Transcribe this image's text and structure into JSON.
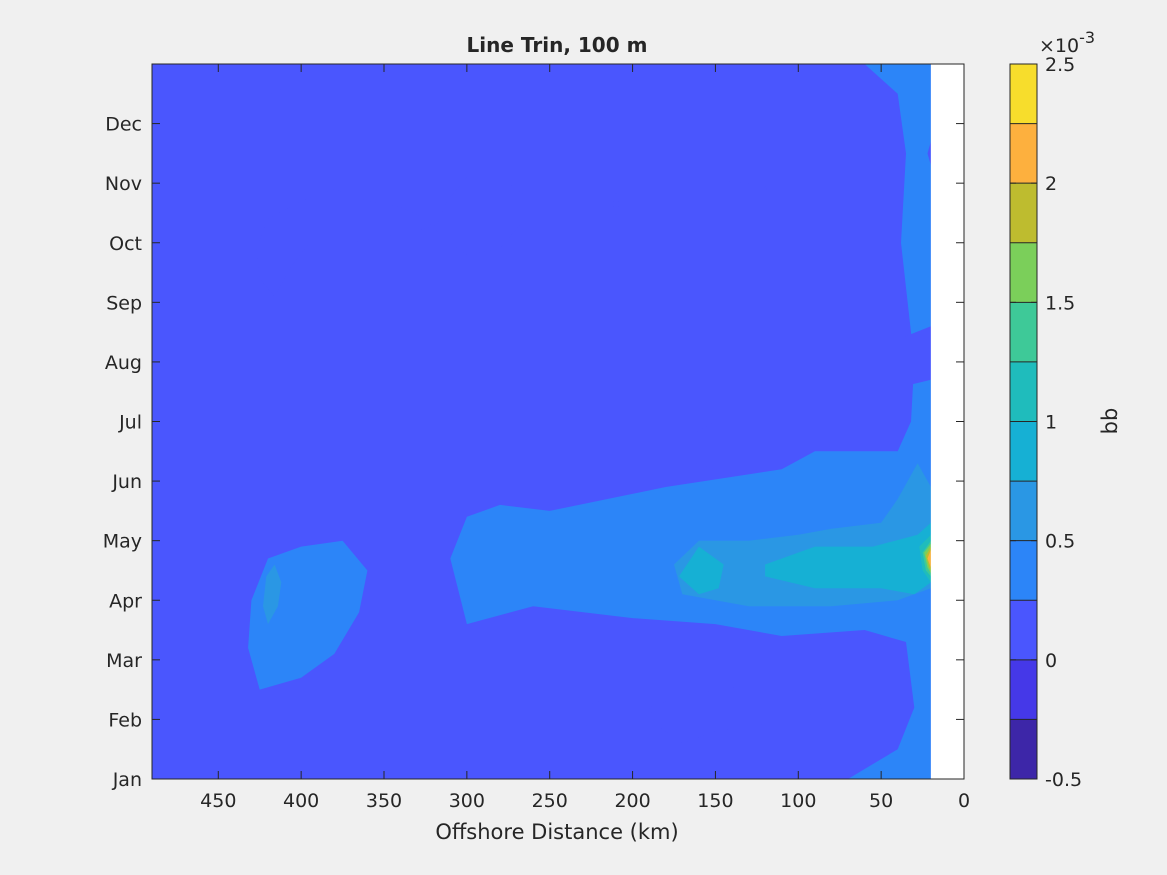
{
  "chart_data": {
    "type": "contourf",
    "title": "Line Trin, 100 m",
    "xlabel": "Offshore Distance (km)",
    "ylabel": "",
    "x_reversed": true,
    "xlim": [
      0,
      490
    ],
    "ylim": [
      0,
      12
    ],
    "x_ticks": [
      450,
      400,
      350,
      300,
      250,
      200,
      150,
      100,
      50,
      0
    ],
    "y_ticks": [
      "Jan",
      "Feb",
      "Mar",
      "Apr",
      "May",
      "Jun",
      "Jul",
      "Aug",
      "Sep",
      "Oct",
      "Nov",
      "Dec"
    ],
    "no_data_region_x": [
      0,
      20
    ],
    "colorbar": {
      "label": "bb",
      "multiplier": "×10",
      "exponent": "-3",
      "ticks": [
        "-0.5",
        "0",
        "0.5",
        "1",
        "1.5",
        "2",
        "2.5"
      ],
      "levels": [
        -0.5,
        -0.25,
        0,
        0.25,
        0.5,
        0.75,
        1.0,
        1.25,
        1.5,
        1.75,
        2.0,
        2.25,
        2.5
      ],
      "colors": [
        "#3d26a8",
        "#4538e8",
        "#4a56fe",
        "#2c85f8",
        "#2a97e4",
        "#16b0d4",
        "#1fbcbc",
        "#3ec998",
        "#7bcf5a",
        "#bebc2f",
        "#fdb03e",
        "#f7dd2c"
      ]
    },
    "background_level": 0.1,
    "regions": [
      {
        "level": 0.4,
        "points": [
          [
            70,
            0
          ],
          [
            20,
            0
          ],
          [
            20,
            12
          ],
          [
            60,
            12
          ],
          [
            40,
            11.5
          ],
          [
            35,
            10.5
          ],
          [
            38,
            9
          ],
          [
            30,
            7
          ],
          [
            32,
            6
          ],
          [
            40,
            5.5
          ],
          [
            90,
            5.5
          ],
          [
            110,
            5.2
          ],
          [
            180,
            4.9
          ],
          [
            250,
            4.5
          ],
          [
            280,
            4.6
          ],
          [
            300,
            4.4
          ],
          [
            310,
            3.7
          ],
          [
            300,
            2.6
          ],
          [
            260,
            2.9
          ],
          [
            200,
            2.7
          ],
          [
            150,
            2.6
          ],
          [
            110,
            2.4
          ],
          [
            60,
            2.5
          ],
          [
            35,
            2.3
          ],
          [
            30,
            1.2
          ],
          [
            40,
            0.5
          ]
        ]
      },
      {
        "level": 0.4,
        "points": [
          [
            425,
            1.5
          ],
          [
            400,
            1.7
          ],
          [
            380,
            2.1
          ],
          [
            365,
            2.8
          ],
          [
            360,
            3.5
          ],
          [
            375,
            4.0
          ],
          [
            400,
            3.9
          ],
          [
            420,
            3.7
          ],
          [
            430,
            3.0
          ],
          [
            432,
            2.2
          ]
        ]
      },
      {
        "level": 0.65,
        "points": [
          [
            20,
            4.9
          ],
          [
            28,
            5.3
          ],
          [
            40,
            4.7
          ],
          [
            50,
            4.3
          ],
          [
            80,
            4.2
          ],
          [
            100,
            4.1
          ],
          [
            130,
            4.0
          ],
          [
            160,
            4.0
          ],
          [
            175,
            3.6
          ],
          [
            170,
            3.1
          ],
          [
            130,
            2.9
          ],
          [
            80,
            2.9
          ],
          [
            40,
            3.0
          ],
          [
            20,
            3.2
          ]
        ]
      },
      {
        "level": 0.65,
        "points": [
          [
            420,
            2.6
          ],
          [
            414,
            2.9
          ],
          [
            412,
            3.3
          ],
          [
            416,
            3.6
          ],
          [
            421,
            3.4
          ],
          [
            423,
            2.9
          ]
        ]
      },
      {
        "level": 0.9,
        "points": [
          [
            20,
            4.3
          ],
          [
            28,
            4.1
          ],
          [
            55,
            3.9
          ],
          [
            90,
            3.9
          ],
          [
            120,
            3.6
          ],
          [
            120,
            3.4
          ],
          [
            90,
            3.2
          ],
          [
            50,
            3.2
          ],
          [
            30,
            3.1
          ],
          [
            20,
            3.3
          ]
        ]
      },
      {
        "level": 0.9,
        "points": [
          [
            160,
            3.9
          ],
          [
            145,
            3.6
          ],
          [
            148,
            3.2
          ],
          [
            160,
            3.1
          ],
          [
            172,
            3.4
          ]
        ]
      },
      {
        "level": 1.15,
        "points": [
          [
            20,
            4.1
          ],
          [
            27,
            3.9
          ],
          [
            25,
            3.5
          ],
          [
            20,
            3.3
          ]
        ]
      },
      {
        "level": 1.4,
        "points": [
          [
            20,
            4.0
          ],
          [
            25,
            3.8
          ],
          [
            23,
            3.5
          ],
          [
            20,
            3.4
          ]
        ]
      },
      {
        "level": 1.65,
        "points": [
          [
            20,
            3.95
          ],
          [
            24,
            3.8
          ],
          [
            22,
            3.55
          ],
          [
            20,
            3.45
          ]
        ]
      },
      {
        "level": 1.9,
        "points": [
          [
            20,
            3.9
          ],
          [
            23,
            3.75
          ],
          [
            21,
            3.55
          ],
          [
            20,
            3.5
          ]
        ]
      },
      {
        "level": 2.15,
        "points": [
          [
            20,
            3.85
          ],
          [
            22,
            3.7
          ],
          [
            20,
            3.55
          ]
        ]
      },
      {
        "level": 0.05,
        "points": [
          [
            300,
            10.1
          ],
          [
            275,
            10.0
          ],
          [
            265,
            9.8
          ],
          [
            268,
            9.3
          ],
          [
            280,
            8.9
          ],
          [
            300,
            8.8
          ],
          [
            315,
            9.1
          ],
          [
            325,
            9.4
          ],
          [
            340,
            9.6
          ],
          [
            360,
            9.7
          ],
          [
            380,
            9.9
          ],
          [
            400,
            9.7
          ],
          [
            420,
            9.4
          ],
          [
            427,
            8.9
          ],
          [
            425,
            8.4
          ],
          [
            416,
            8.1
          ],
          [
            406,
            8.6
          ],
          [
            395,
            9.0
          ],
          [
            370,
            9.0
          ],
          [
            350,
            9.1
          ],
          [
            330,
            9.2
          ],
          [
            318,
            9.3
          ],
          [
            312,
            9.7
          ]
        ]
      },
      {
        "level": 0.05,
        "points": [
          [
            130,
            10.0
          ],
          [
            150,
            10.05
          ],
          [
            165,
            9.8
          ],
          [
            168,
            9.4
          ],
          [
            160,
            9.1
          ],
          [
            140,
            9.1
          ],
          [
            130,
            9.4
          ],
          [
            127,
            9.8
          ]
        ]
      },
      {
        "level": 0.05,
        "points": [
          [
            130,
            6.0
          ],
          [
            150,
            6.0
          ],
          [
            163,
            5.8
          ],
          [
            162,
            5.3
          ],
          [
            150,
            5.2
          ],
          [
            136,
            5.2
          ],
          [
            128,
            5.5
          ]
        ]
      },
      {
        "level": 0.05,
        "points": [
          [
            20,
            7.6
          ],
          [
            38,
            7.4
          ],
          [
            40,
            7.0
          ],
          [
            35,
            6.6
          ],
          [
            20,
            6.7
          ]
        ]
      },
      {
        "level": 0.05,
        "points": [
          [
            20,
            10.7
          ],
          [
            22,
            10.5
          ],
          [
            20,
            10.3
          ]
        ]
      },
      {
        "level": 0.05,
        "points": [
          [
            64,
            6.7
          ],
          [
            60,
            6.6
          ],
          [
            55,
            6.7
          ],
          [
            58,
            6.9
          ],
          [
            62,
            6.9
          ]
        ]
      },
      {
        "level": 0.05,
        "points": [
          [
            210,
            9.85
          ],
          [
            212,
            9.65
          ],
          [
            210,
            9.45
          ],
          [
            208,
            9.65
          ]
        ]
      },
      {
        "level": 0.05,
        "points": [
          [
            120,
            9.95
          ],
          [
            119,
            9.9
          ],
          [
            120,
            9.85
          ],
          [
            121,
            9.9
          ]
        ]
      },
      {
        "level": 0.05,
        "points": [
          [
            170,
            1.4
          ],
          [
            125,
            1.6
          ],
          [
            105,
            1.5
          ],
          [
            90,
            1.35
          ],
          [
            85,
            1.2
          ],
          [
            95,
            1.05
          ],
          [
            125,
            0.9
          ],
          [
            150,
            0.8
          ],
          [
            170,
            0.6
          ],
          [
            185,
            0.9
          ],
          [
            190,
            1.2
          ]
        ]
      },
      {
        "level": 0.05,
        "points": [
          [
            215,
            1.35
          ],
          [
            210,
            1.2
          ],
          [
            212,
            0.8
          ],
          [
            220,
            0.75
          ],
          [
            228,
            0.9
          ],
          [
            226,
            1.25
          ]
        ]
      },
      {
        "level": 0.05,
        "points": [
          [
            425,
            12
          ],
          [
            405,
            12
          ],
          [
            410,
            11.6
          ],
          [
            418,
            11.5
          ]
        ]
      },
      {
        "level": 0.05,
        "points": [
          [
            425,
            0
          ],
          [
            405,
            0
          ],
          [
            408,
            0.4
          ],
          [
            417,
            0.5
          ],
          [
            423,
            0.3
          ]
        ]
      }
    ]
  }
}
